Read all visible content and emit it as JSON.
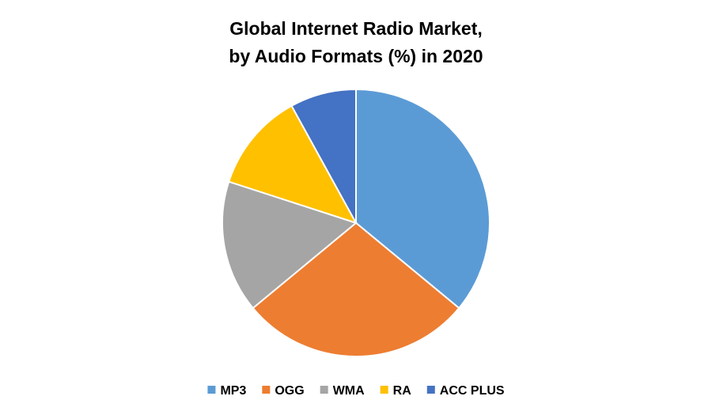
{
  "chart_data": {
    "type": "pie",
    "title": "Global Internet Radio Market,\nby Audio Formats (%) in 2020",
    "title_lines": [
      "Global Internet Radio Market,",
      "by Audio Formats (%) in 2020"
    ],
    "categories": [
      "MP3",
      "OGG",
      "WMA",
      "RA",
      "ACC PLUS"
    ],
    "values": [
      36,
      28,
      16,
      12,
      8
    ],
    "unit": "%",
    "colors": [
      "#5B9BD5",
      "#ED7D31",
      "#A5A5A5",
      "#FFC000",
      "#4472C4"
    ],
    "start_angle": "12 o'clock",
    "direction": "clockwise",
    "legend_position": "bottom",
    "data_labels": false
  }
}
